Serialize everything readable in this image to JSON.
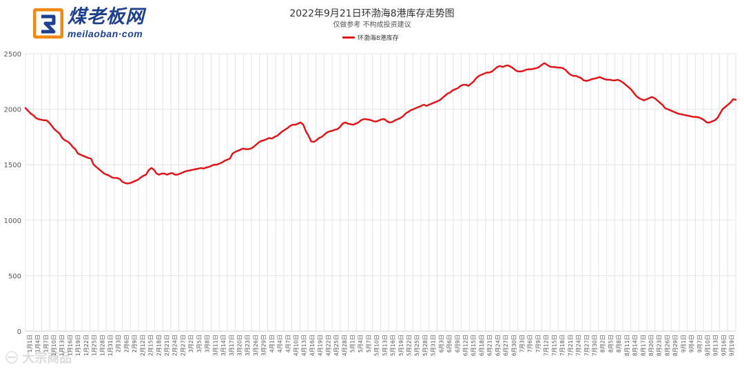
{
  "logo": {
    "cn": "煤老板网",
    "en": "meilaoban·com"
  },
  "header": {
    "title": "2022年9月21日环渤海8港库存走势图",
    "subtitle": "仅做参考 不构成投资建议"
  },
  "watermark": "㊀ 大宗商品",
  "colors": {
    "series": "#e0151b",
    "grid": "#e3e3e3",
    "axis": "#555555"
  },
  "chart_data": {
    "type": "line",
    "title": "2022年9月21日环渤海8港库存走势图",
    "ylim": [
      0,
      2500
    ],
    "yticks": [
      0,
      500,
      1000,
      1500,
      2000,
      2500
    ],
    "grid": true,
    "legend_position": "top-center",
    "x_tick_labels": [
      "1月1日",
      "1月4日",
      "1月7日",
      "1月10日",
      "1月13日",
      "1月16日",
      "1月19日",
      "1月22日",
      "1月25日",
      "1月28日",
      "1月31日",
      "2月3日",
      "2月6日",
      "2月9日",
      "2月12日",
      "2月15日",
      "2月18日",
      "2月21日",
      "2月24日",
      "2月27日",
      "3月2日",
      "3月5日",
      "3月8日",
      "3月11日",
      "3月14日",
      "3月17日",
      "3月20日",
      "3月23日",
      "3月26日",
      "3月29日",
      "4月1日",
      "4月4日",
      "4月7日",
      "4月10日",
      "4月13日",
      "4月16日",
      "4月19日",
      "4月22日",
      "4月25日",
      "4月28日",
      "5月1日",
      "5月4日",
      "5月7日",
      "5月10日",
      "5月13日",
      "5月16日",
      "5月19日",
      "5月22日",
      "5月25日",
      "5月28日",
      "5月31日",
      "6月3日",
      "6月6日",
      "6月9日",
      "6月12日",
      "6月15日",
      "6月18日",
      "6月21日",
      "6月24日",
      "6月27日",
      "6月30日",
      "7月3日",
      "7月6日",
      "7月9日",
      "7月12日",
      "7月15日",
      "7月18日",
      "7月21日",
      "7月24日",
      "7月27日",
      "7月30日",
      "8月2日",
      "8月5日",
      "8月8日",
      "8月11日",
      "8月14日",
      "8月17日",
      "8月20日",
      "8月23日",
      "8月26日",
      "8月29日",
      "9月1日",
      "9月4日",
      "9月7日",
      "9月10日",
      "9月13日",
      "9月16日",
      "9月19日"
    ],
    "series": [
      {
        "name": "环渤海8港库存",
        "values": [
          2010,
          1985,
          1960,
          1945,
          1920,
          1910,
          1905,
          1900,
          1900,
          1880,
          1850,
          1820,
          1800,
          1780,
          1740,
          1720,
          1710,
          1690,
          1660,
          1640,
          1600,
          1590,
          1580,
          1570,
          1560,
          1555,
          1500,
          1480,
          1460,
          1440,
          1420,
          1410,
          1400,
          1385,
          1380,
          1380,
          1370,
          1345,
          1335,
          1330,
          1335,
          1345,
          1355,
          1365,
          1385,
          1400,
          1410,
          1450,
          1470,
          1455,
          1420,
          1410,
          1420,
          1420,
          1410,
          1420,
          1425,
          1410,
          1410,
          1420,
          1430,
          1440,
          1445,
          1450,
          1455,
          1460,
          1465,
          1470,
          1465,
          1475,
          1480,
          1490,
          1500,
          1500,
          1510,
          1520,
          1535,
          1545,
          1555,
          1600,
          1615,
          1625,
          1635,
          1645,
          1640,
          1640,
          1645,
          1660,
          1680,
          1700,
          1715,
          1720,
          1730,
          1740,
          1735,
          1750,
          1760,
          1780,
          1800,
          1815,
          1830,
          1850,
          1860,
          1860,
          1870,
          1880,
          1860,
          1800,
          1760,
          1710,
          1705,
          1720,
          1740,
          1750,
          1770,
          1790,
          1800,
          1805,
          1815,
          1820,
          1840,
          1870,
          1880,
          1870,
          1865,
          1860,
          1870,
          1880,
          1900,
          1910,
          1910,
          1905,
          1900,
          1890,
          1890,
          1900,
          1910,
          1910,
          1890,
          1880,
          1885,
          1900,
          1910,
          1920,
          1935,
          1960,
          1975,
          1990,
          2000,
          2010,
          2020,
          2030,
          2040,
          2030,
          2040,
          2050,
          2060,
          2070,
          2080,
          2100,
          2120,
          2140,
          2150,
          2170,
          2180,
          2190,
          2210,
          2220,
          2220,
          2210,
          2230,
          2250,
          2280,
          2300,
          2310,
          2320,
          2330,
          2330,
          2340,
          2360,
          2380,
          2390,
          2380,
          2390,
          2395,
          2385,
          2370,
          2350,
          2340,
          2340,
          2345,
          2355,
          2360,
          2360,
          2365,
          2370,
          2380,
          2400,
          2415,
          2400,
          2385,
          2380,
          2380,
          2375,
          2375,
          2370,
          2355,
          2330,
          2310,
          2300,
          2300,
          2290,
          2280,
          2260,
          2255,
          2260,
          2270,
          2275,
          2280,
          2290,
          2280,
          2270,
          2265,
          2265,
          2260,
          2260,
          2265,
          2255,
          2240,
          2220,
          2200,
          2180,
          2150,
          2120,
          2100,
          2090,
          2080,
          2090,
          2100,
          2110,
          2100,
          2080,
          2060,
          2040,
          2010,
          2000,
          1990,
          1980,
          1970,
          1960,
          1955,
          1950,
          1945,
          1940,
          1935,
          1930,
          1930,
          1925,
          1915,
          1900,
          1880,
          1880,
          1890,
          1900,
          1920,
          1960,
          2000,
          2020,
          2040,
          2060,
          2090,
          2085
        ]
      }
    ]
  }
}
